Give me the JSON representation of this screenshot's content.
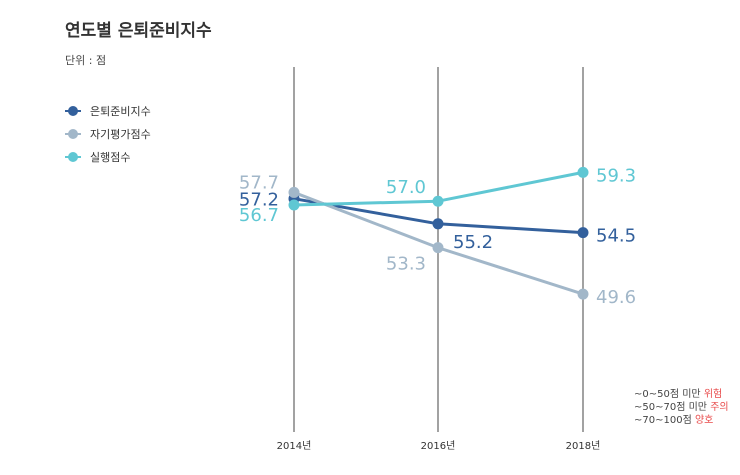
{
  "title": "연도별 은퇴준비지수",
  "unit_label": "단위 : 점",
  "colors": {
    "series_1": "#33609c",
    "series_2": "#a2b7c9",
    "series_3": "#5fc7d3",
    "axis": "#444444",
    "warning": "#e84a4a"
  },
  "notes": [
    {
      "range": "~0~50점 미만",
      "tag": "위험"
    },
    {
      "range": "~50~70점 미만",
      "tag": "주의"
    },
    {
      "range": "~70~100점",
      "tag": "양호"
    }
  ],
  "chart_data": {
    "type": "line",
    "title": "연도별 은퇴준비지수",
    "unit": "단위 : 점",
    "x": [
      "2014년",
      "2016년",
      "2018년"
    ],
    "series": [
      {
        "name": "은퇴준비지수",
        "values": [
          57.2,
          55.2,
          54.5
        ],
        "labels": [
          "57.2",
          "55.2",
          "54.5"
        ]
      },
      {
        "name": "자기평가점수",
        "values": [
          57.7,
          53.3,
          49.6
        ],
        "labels": [
          "57.7",
          "53.3",
          "49.6"
        ]
      },
      {
        "name": "실행점수",
        "values": [
          56.7,
          57.0,
          59.3
        ],
        "labels": [
          "56.7",
          "57.0",
          "59.3"
        ]
      }
    ],
    "legend": "top-left",
    "grid": "vertical-lines"
  }
}
